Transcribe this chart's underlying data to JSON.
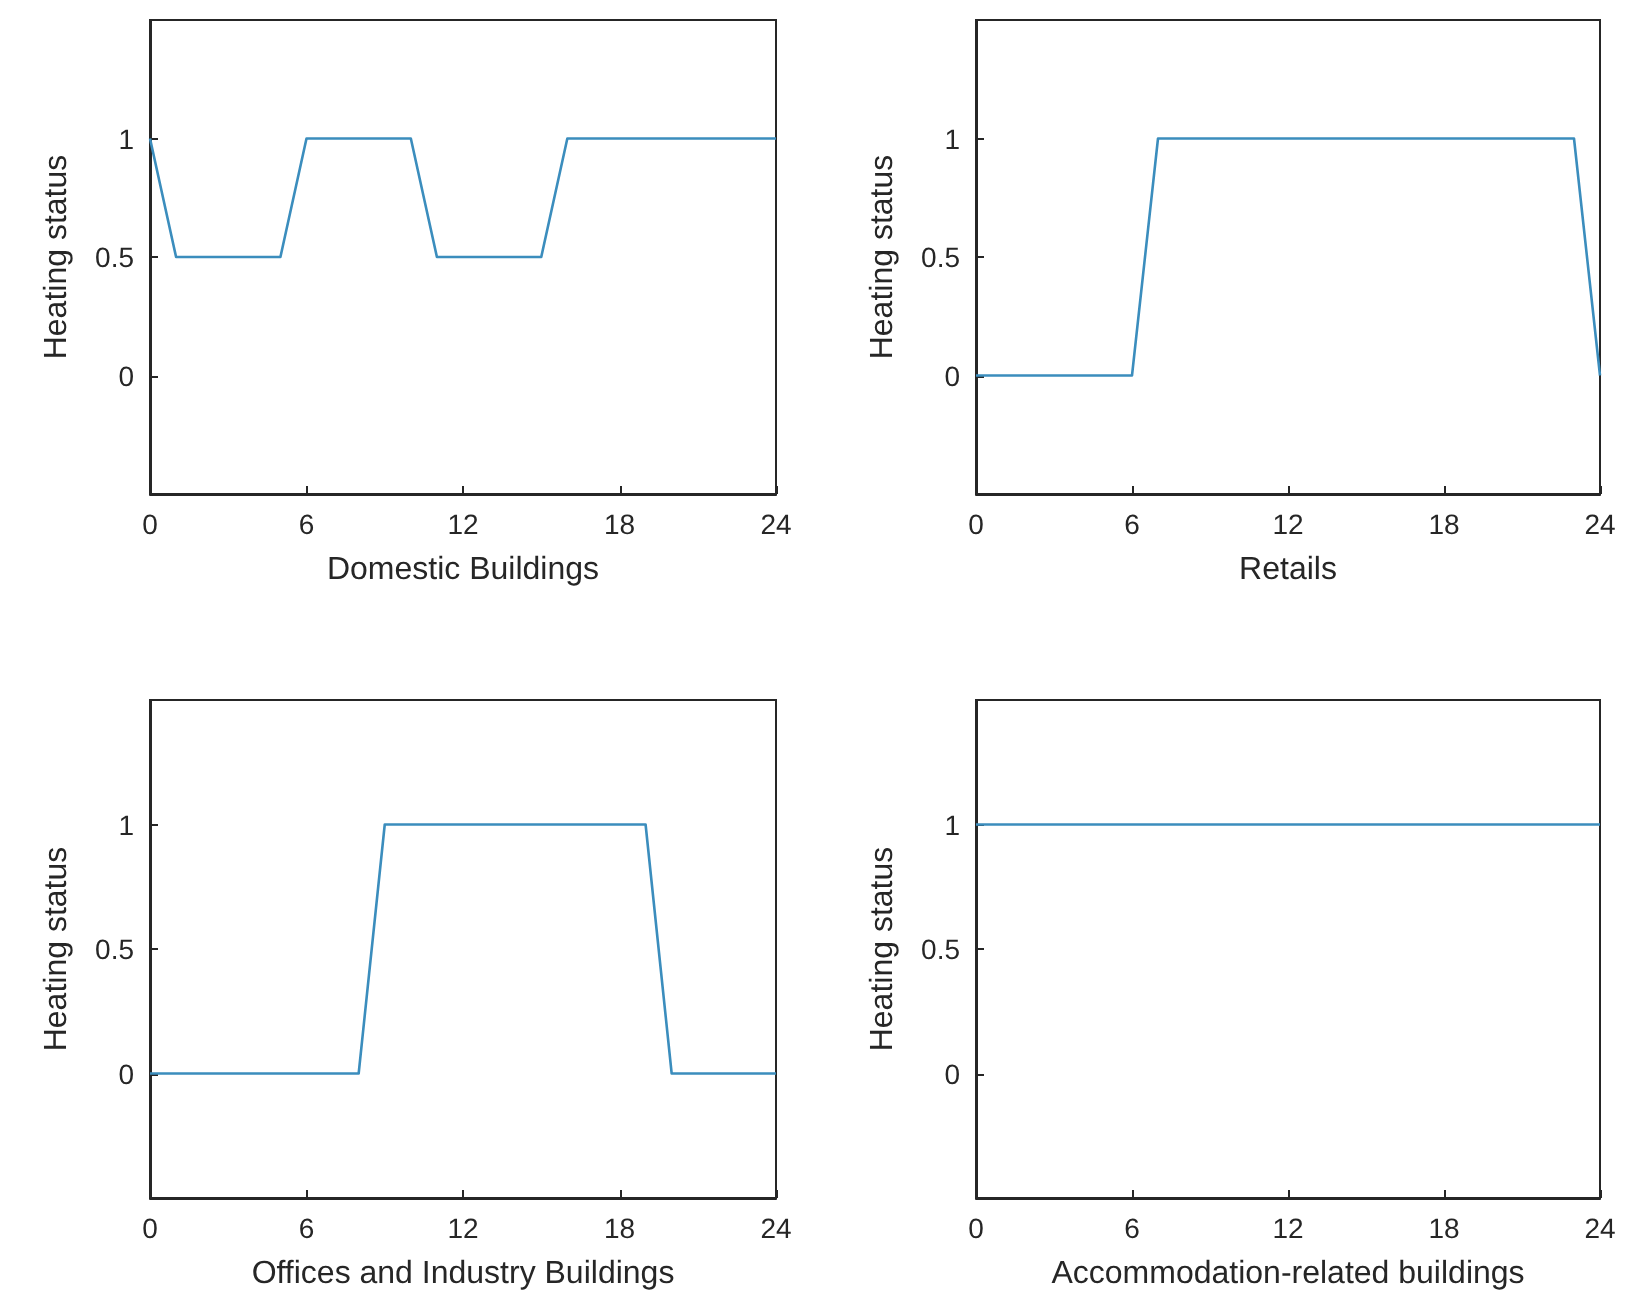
{
  "chart_data": [
    {
      "type": "line",
      "xlabel": "Domestic Buildings",
      "ylabel": "Heating status",
      "x": [
        0,
        1,
        5,
        6,
        10,
        11,
        15,
        16,
        24
      ],
      "values": [
        1,
        0.5,
        0.5,
        1,
        1,
        0.5,
        0.5,
        1,
        1
      ],
      "color": "#3b8dbd",
      "xlim": [
        0,
        24
      ],
      "xticks": [
        0,
        6,
        12,
        18,
        24
      ],
      "ylim": [
        -0.5,
        1.5
      ],
      "yticks": [
        0,
        0.5,
        1
      ],
      "marker": "none",
      "grid": false
    },
    {
      "type": "line",
      "xlabel": "Retails",
      "ylabel": "Heating status",
      "x": [
        0,
        6,
        7,
        23,
        24
      ],
      "values": [
        0,
        0,
        1,
        1,
        0
      ],
      "color": "#3b8dbd",
      "xlim": [
        0,
        24
      ],
      "xticks": [
        0,
        6,
        12,
        18,
        24
      ],
      "ylim": [
        -0.5,
        1.5
      ],
      "yticks": [
        0,
        0.5,
        1
      ],
      "marker": "none",
      "grid": false
    },
    {
      "type": "line",
      "xlabel": "Offices and Industry Buildings",
      "ylabel": "Heating status",
      "x": [
        0,
        8,
        9,
        19,
        20,
        24
      ],
      "values": [
        0,
        0,
        1,
        1,
        0,
        0
      ],
      "color": "#3b8dbd",
      "xlim": [
        0,
        24
      ],
      "xticks": [
        0,
        6,
        12,
        18,
        24
      ],
      "ylim": [
        -0.5,
        1.5
      ],
      "yticks": [
        0,
        0.5,
        1
      ],
      "marker": "none",
      "grid": false
    },
    {
      "type": "line",
      "xlabel": "Accommodation-related buildings",
      "ylabel": "Heating status",
      "x": [
        0,
        24
      ],
      "values": [
        1,
        1
      ],
      "color": "#3b8dbd",
      "xlim": [
        0,
        24
      ],
      "xticks": [
        0,
        6,
        12,
        18,
        24
      ],
      "ylim": [
        -0.5,
        1.5
      ],
      "yticks": [
        0,
        0.5,
        1
      ],
      "marker": "none",
      "grid": false
    }
  ]
}
